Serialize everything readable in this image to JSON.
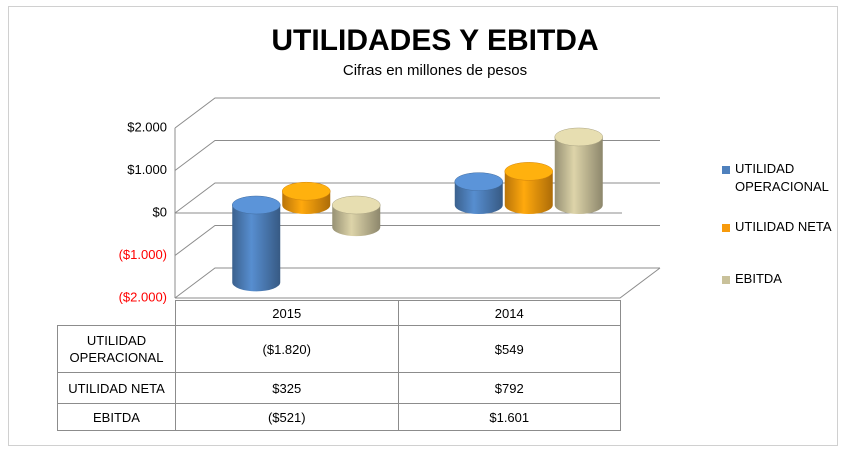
{
  "chart_data": {
    "type": "cylinder",
    "title": "UTILIDADES Y EBITDA",
    "subtitle": "Cifras en millones de pesos",
    "categories": [
      "2015",
      "2014"
    ],
    "series": [
      {
        "name": "UTILIDAD OPERACIONAL",
        "color": "#4f81bd",
        "values": [
          -1820,
          549
        ],
        "value_labels": [
          "($1.820)",
          "$549"
        ]
      },
      {
        "name": "UTILIDAD NETA",
        "color": "#f79a0c",
        "values": [
          325,
          792
        ],
        "value_labels": [
          "$325",
          "$792"
        ]
      },
      {
        "name": "EBITDA",
        "color": "#c9c19a",
        "values": [
          -521,
          1601
        ],
        "value_labels": [
          "($521)",
          "$1.601"
        ]
      }
    ],
    "ylim": [
      -2000,
      2000
    ],
    "yticks": [
      {
        "value": -2000,
        "label": "($2.000)"
      },
      {
        "value": -1000,
        "label": "($1.000)"
      },
      {
        "value": 0,
        "label": "$0"
      },
      {
        "value": 1000,
        "label": "$1.000"
      },
      {
        "value": 2000,
        "label": "$2.000"
      }
    ],
    "negative_tick_color": "#ff0000",
    "grid": true,
    "legend": "right"
  }
}
